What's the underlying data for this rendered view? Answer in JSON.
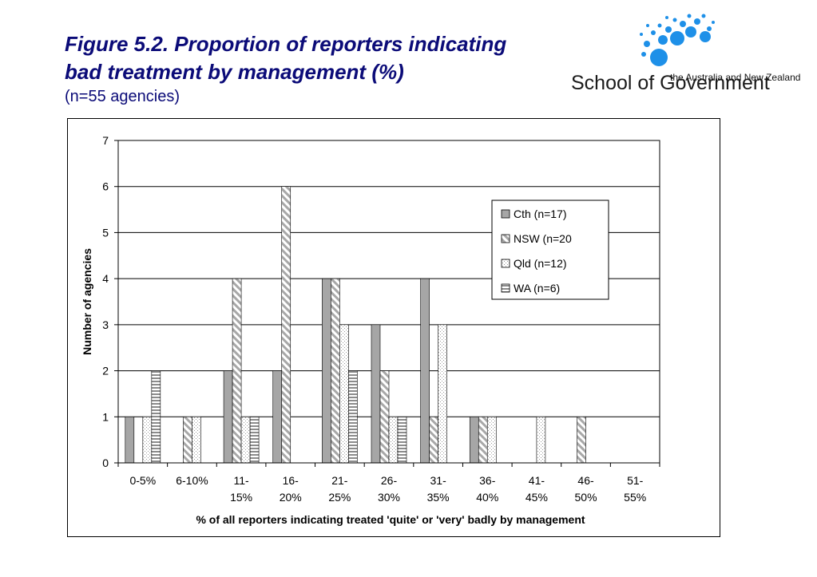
{
  "title": {
    "line1": "Figure 5.2. Proportion of reporters indicating",
    "line2": "bad treatment by management (%)",
    "subtitle": "(n=55 agencies)"
  },
  "logo": {
    "small_text": "the Australia and New Zealand",
    "big_text": "School of Government",
    "color": "#1e90e8"
  },
  "chart_data": {
    "type": "bar",
    "xlabel": "% of all reporters indicating treated 'quite' or 'very' badly by management",
    "ylabel": "Number of agencies",
    "ylim": [
      0,
      7
    ],
    "yticks": [
      0,
      1,
      2,
      3,
      4,
      5,
      6,
      7
    ],
    "grid": true,
    "legend_position": "top-right",
    "categories": [
      [
        "0-5%"
      ],
      [
        "6-10%"
      ],
      [
        "11-",
        "15%"
      ],
      [
        "16-",
        "20%"
      ],
      [
        "21-",
        "25%"
      ],
      [
        "26-",
        "30%"
      ],
      [
        "31-",
        "35%"
      ],
      [
        "36-",
        "40%"
      ],
      [
        "41-",
        "45%"
      ],
      [
        "46-",
        "50%"
      ],
      [
        "51-",
        "55%"
      ]
    ],
    "series": [
      {
        "name": "Cth (n=17)",
        "pattern": "solid-grey",
        "values": [
          1,
          0,
          2,
          2,
          4,
          3,
          4,
          1,
          0,
          0,
          0
        ]
      },
      {
        "name": "NSW (n=20",
        "pattern": "diagonal",
        "values": [
          0,
          1,
          4,
          6,
          4,
          2,
          1,
          1,
          0,
          1,
          0
        ]
      },
      {
        "name": "Qld (n=12)",
        "pattern": "dotted",
        "values": [
          1,
          1,
          1,
          0,
          3,
          1,
          3,
          1,
          1,
          0,
          0
        ]
      },
      {
        "name": "WA (n=6)",
        "pattern": "horizontal",
        "values": [
          2,
          0,
          1,
          0,
          2,
          1,
          0,
          0,
          0,
          0,
          0
        ]
      }
    ]
  }
}
